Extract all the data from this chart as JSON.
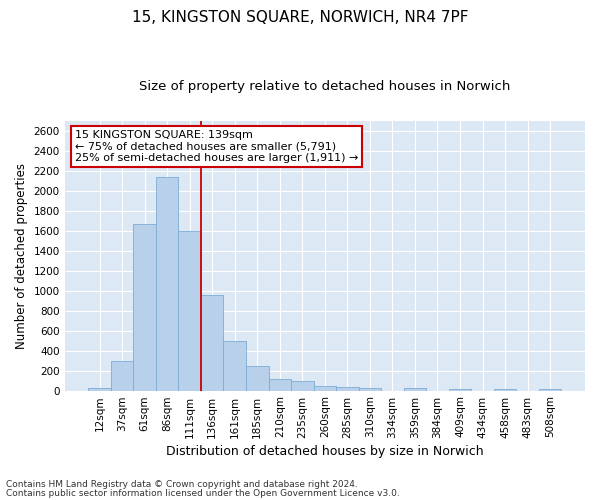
{
  "title": "15, KINGSTON SQUARE, NORWICH, NR4 7PF",
  "subtitle": "Size of property relative to detached houses in Norwich",
  "xlabel": "Distribution of detached houses by size in Norwich",
  "ylabel": "Number of detached properties",
  "footnote1": "Contains HM Land Registry data © Crown copyright and database right 2024.",
  "footnote2": "Contains public sector information licensed under the Open Government Licence v3.0.",
  "categories": [
    "12sqm",
    "37sqm",
    "61sqm",
    "86sqm",
    "111sqm",
    "136sqm",
    "161sqm",
    "185sqm",
    "210sqm",
    "235sqm",
    "260sqm",
    "285sqm",
    "310sqm",
    "334sqm",
    "359sqm",
    "384sqm",
    "409sqm",
    "434sqm",
    "458sqm",
    "483sqm",
    "508sqm"
  ],
  "values": [
    25,
    300,
    1670,
    2140,
    1600,
    960,
    500,
    250,
    120,
    100,
    50,
    35,
    30,
    0,
    25,
    0,
    20,
    0,
    15,
    0,
    20
  ],
  "bar_color": "#b8d0ea",
  "bar_edge_color": "#7aadd4",
  "vline_x_index": 5,
  "vline_color": "#cc0000",
  "annotation_text": "15 KINGSTON SQUARE: 139sqm\n← 75% of detached houses are smaller (5,791)\n25% of semi-detached houses are larger (1,911) →",
  "annotation_box_facecolor": "#ffffff",
  "annotation_box_edgecolor": "#cc0000",
  "ylim": [
    0,
    2700
  ],
  "yticks": [
    0,
    200,
    400,
    600,
    800,
    1000,
    1200,
    1400,
    1600,
    1800,
    2000,
    2200,
    2400,
    2600
  ],
  "background_color": "#ffffff",
  "plot_bg_color": "#dde8f5",
  "grid_color": "#ffffff",
  "title_fontsize": 11,
  "subtitle_fontsize": 9.5,
  "ylabel_fontsize": 8.5,
  "xlabel_fontsize": 9,
  "tick_fontsize": 7.5,
  "annotation_fontsize": 8,
  "footnote_fontsize": 6.5
}
